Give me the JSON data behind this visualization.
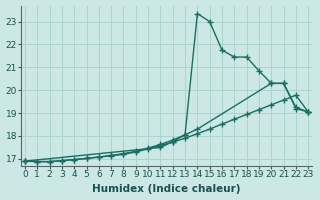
{
  "xlabel": "Humidex (Indice chaleur)",
  "bg_color": "#cce8e4",
  "grid_color": "#aad4cc",
  "line_color": "#1a6e64",
  "xlim": [
    -0.3,
    23.3
  ],
  "ylim": [
    16.7,
    23.7
  ],
  "xticks": [
    0,
    1,
    2,
    3,
    4,
    5,
    6,
    7,
    8,
    9,
    10,
    11,
    12,
    13,
    14,
    15,
    16,
    17,
    18,
    19,
    20,
    21,
    22,
    23
  ],
  "yticks": [
    17,
    18,
    19,
    20,
    21,
    22,
    23
  ],
  "line1_x": [
    0,
    1,
    2,
    3,
    4,
    5,
    6,
    7,
    8,
    9,
    10,
    11,
    12,
    13,
    14,
    15,
    16,
    17,
    18,
    19,
    20,
    21,
    22,
    23
  ],
  "line1_y": [
    16.9,
    16.88,
    16.88,
    16.92,
    16.97,
    17.02,
    17.08,
    17.15,
    17.23,
    17.33,
    17.47,
    17.63,
    17.82,
    18.05,
    23.35,
    23.0,
    21.75,
    21.45,
    21.45,
    20.85,
    20.3,
    20.3,
    19.2,
    19.05
  ],
  "line2_x": [
    0,
    11,
    12,
    13,
    14,
    20,
    21,
    22,
    23
  ],
  "line2_y": [
    16.9,
    17.5,
    17.75,
    18.05,
    18.3,
    20.3,
    20.3,
    19.25,
    19.05
  ],
  "line3_x": [
    0,
    1,
    2,
    3,
    4,
    5,
    6,
    7,
    8,
    9,
    10,
    11,
    12,
    13,
    14,
    15,
    16,
    17,
    18,
    19,
    20,
    21,
    22,
    23
  ],
  "line3_y": [
    16.9,
    16.88,
    16.88,
    16.92,
    16.97,
    17.02,
    17.08,
    17.13,
    17.2,
    17.3,
    17.44,
    17.58,
    17.73,
    17.9,
    18.1,
    18.3,
    18.52,
    18.73,
    18.94,
    19.15,
    19.36,
    19.57,
    19.78,
    19.05
  ],
  "marker": "+",
  "marker_size": 4,
  "line_width": 1.0,
  "tick_fontsize": 6.5,
  "label_fontsize": 7.5
}
